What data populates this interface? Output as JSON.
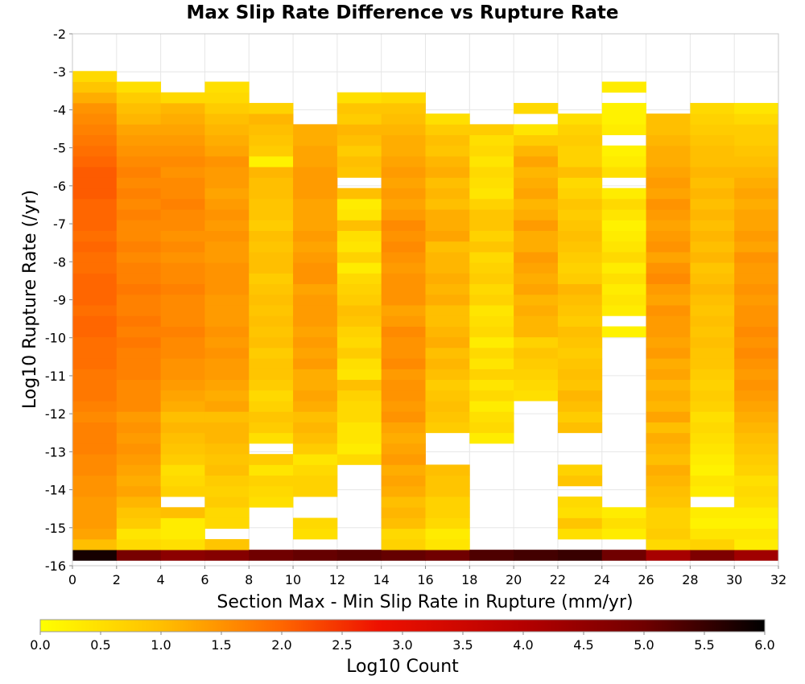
{
  "chart_data": {
    "type": "heatmap",
    "title": "Max Slip Rate Difference vs Rupture Rate",
    "xlabel": "Section Max - Min Slip Rate in Rupture (mm/yr)",
    "ylabel": "Log10 Rupture Rate (/yr)",
    "xlim": [
      0,
      32
    ],
    "ylim": [
      -16,
      -2
    ],
    "xticks": [
      "0",
      "2",
      "4",
      "6",
      "8",
      "10",
      "12",
      "14",
      "16",
      "18",
      "20",
      "22",
      "24",
      "26",
      "28",
      "30",
      "32"
    ],
    "yticks": [
      "-2",
      "-3",
      "-4",
      "-5",
      "-6",
      "-7",
      "-8",
      "-9",
      "-10",
      "-11",
      "-12",
      "-13",
      "-14",
      "-15",
      "-16"
    ],
    "grid": true,
    "x_bin_width": 2,
    "y_bin_height": 0.28,
    "x_bins": [
      0,
      2,
      4,
      6,
      8,
      10,
      12,
      14,
      16,
      18,
      20,
      22,
      24,
      26,
      28,
      30
    ],
    "y_bins_bottom_to_top": [
      -15.86,
      -15.58,
      -15.3,
      -15.02,
      -14.74,
      -14.46,
      -14.18,
      -13.9,
      -13.62,
      -13.34,
      -13.06,
      -12.78,
      -12.5,
      -12.22,
      -11.94,
      -11.66,
      -11.38,
      -11.1,
      -10.82,
      -10.54,
      -10.26,
      -9.98,
      -9.7,
      -9.42,
      -9.14,
      -8.86,
      -8.58,
      -8.3,
      -8.02,
      -7.74,
      -7.46,
      -7.18,
      -6.9,
      -6.62,
      -6.34,
      -6.06,
      -5.78,
      -5.5,
      -5.22,
      -4.94,
      -4.66,
      -4.38,
      -4.1,
      -3.82,
      -3.54,
      -3.26
    ],
    "values_log10_count": [
      [
        5.8,
        1.0,
        1.3,
        1.4,
        1.4,
        1.4,
        1.5,
        1.5,
        1.6,
        1.6,
        1.7,
        1.7,
        1.7,
        1.6,
        1.7,
        1.8,
        1.8,
        1.8,
        1.9,
        1.9,
        1.9,
        2.0,
        2.0,
        1.9,
        2.0,
        2.0,
        2.0,
        1.9,
        1.9,
        2.0,
        1.9,
        2.0,
        2.0,
        2.0,
        2.1,
        2.1,
        2.1,
        2.0,
        1.9,
        1.8,
        1.7,
        1.6,
        1.5,
        1.2,
        0.9,
        0.6
      ],
      [
        4.9,
        0.6,
        0.4,
        0.8,
        0.9,
        1.1,
        1.3,
        1.2,
        1.3,
        1.4,
        1.5,
        1.4,
        1.5,
        1.4,
        1.6,
        1.6,
        1.6,
        1.7,
        1.7,
        1.7,
        1.8,
        1.7,
        1.8,
        1.7,
        1.7,
        1.8,
        1.7,
        1.7,
        1.6,
        1.7,
        1.6,
        1.6,
        1.7,
        1.6,
        1.7,
        1.6,
        1.7,
        1.6,
        1.5,
        1.4,
        1.3,
        1.1,
        1.0,
        0.8,
        0.5,
        null
      ],
      [
        4.6,
        0.5,
        0.3,
        0.3,
        1.0,
        null,
        0.7,
        0.6,
        0.5,
        0.8,
        0.9,
        1.0,
        1.1,
        1.0,
        1.2,
        1.3,
        1.4,
        1.5,
        1.5,
        1.6,
        1.6,
        1.7,
        1.6,
        1.6,
        1.6,
        1.7,
        1.6,
        1.6,
        1.5,
        1.6,
        1.5,
        1.6,
        1.6,
        1.7,
        1.6,
        1.6,
        1.5,
        1.6,
        1.5,
        1.4,
        1.3,
        1.2,
        1.1,
        0.6,
        null,
        null
      ],
      [
        4.7,
        0.9,
        null,
        0.6,
        0.6,
        0.8,
        0.7,
        0.8,
        1.0,
        0.9,
        1.0,
        1.1,
        1.1,
        1.0,
        1.3,
        1.2,
        1.3,
        1.4,
        1.4,
        1.5,
        1.4,
        1.5,
        1.4,
        1.4,
        1.4,
        1.5,
        1.5,
        1.5,
        1.4,
        1.4,
        1.5,
        1.4,
        1.5,
        1.4,
        1.3,
        1.4,
        1.4,
        1.5,
        1.3,
        1.2,
        1.1,
        1.0,
        0.8,
        0.6,
        0.5,
        null
      ],
      [
        5.0,
        null,
        null,
        null,
        null,
        0.5,
        0.6,
        0.7,
        0.4,
        0.8,
        null,
        0.5,
        0.8,
        0.9,
        0.7,
        0.6,
        0.8,
        0.9,
        0.9,
        0.8,
        1.0,
        0.9,
        1.0,
        0.9,
        1.0,
        0.9,
        0.8,
        1.0,
        1.0,
        0.9,
        1.0,
        0.8,
        0.9,
        0.9,
        1.0,
        1.0,
        1.1,
        0.2,
        0.8,
        0.9,
        1.0,
        1.1,
        0.7,
        null,
        null,
        null
      ],
      [
        5.1,
        null,
        0.5,
        0.6,
        null,
        null,
        0.7,
        0.7,
        0.6,
        0.4,
        0.8,
        1.0,
        1.1,
        1.0,
        1.2,
        1.3,
        1.2,
        1.2,
        1.4,
        1.3,
        1.4,
        1.3,
        1.4,
        1.4,
        1.4,
        1.3,
        1.5,
        1.5,
        1.4,
        1.3,
        1.4,
        1.3,
        1.3,
        1.3,
        1.4,
        1.4,
        1.4,
        1.3,
        1.3,
        1.2,
        1.2,
        null,
        null,
        null,
        null,
        null
      ],
      [
        5.2,
        null,
        null,
        null,
        null,
        null,
        null,
        null,
        null,
        0.6,
        0.3,
        0.4,
        0.4,
        0.6,
        0.6,
        0.7,
        1.0,
        0.4,
        0.5,
        0.8,
        0.6,
        0.7,
        0.9,
        1.0,
        0.8,
        0.7,
        0.6,
        0.3,
        0.7,
        0.4,
        0.5,
        1.0,
        0.4,
        0.3,
        1.0,
        null,
        0.9,
        1.0,
        0.8,
        1.0,
        1.1,
        0.8,
        0.9,
        0.5,
        null,
        null
      ],
      [
        5.1,
        0.7,
        0.6,
        1.0,
        1.1,
        1.0,
        1.2,
        1.3,
        1.2,
        1.4,
        1.3,
        1.2,
        1.3,
        1.5,
        1.4,
        1.5,
        1.5,
        1.4,
        1.6,
        1.5,
        1.5,
        1.6,
        1.4,
        1.3,
        1.5,
        1.5,
        1.5,
        1.4,
        1.5,
        1.6,
        1.5,
        1.6,
        1.4,
        1.3,
        1.4,
        1.3,
        1.4,
        1.3,
        1.2,
        1.2,
        1.1,
        1.0,
        0.9,
        0.6,
        null,
        null
      ],
      [
        5.0,
        0.4,
        0.3,
        0.6,
        0.7,
        0.7,
        0.9,
        0.9,
        1.0,
        null,
        null,
        null,
        0.8,
        0.9,
        1.0,
        0.9,
        0.8,
        1.0,
        1.1,
        1.0,
        1.2,
        1.1,
        1.0,
        1.0,
        1.2,
        1.1,
        1.2,
        1.1,
        1.1,
        1.0,
        1.3,
        1.2,
        1.2,
        1.0,
        1.1,
        1.0,
        1.2,
        1.1,
        0.9,
        1.0,
        0.8,
        0.5,
        null,
        null,
        null,
        null
      ],
      [
        5.3,
        null,
        null,
        null,
        null,
        null,
        null,
        null,
        null,
        null,
        null,
        0.3,
        0.6,
        0.5,
        0.3,
        0.6,
        0.4,
        0.7,
        0.4,
        0.6,
        0.3,
        0.6,
        0.5,
        0.4,
        0.7,
        0.6,
        0.8,
        0.7,
        0.6,
        0.9,
        0.7,
        0.9,
        0.9,
        0.7,
        0.4,
        0.5,
        0.6,
        0.4,
        0.6,
        0.5,
        0.8,
        null,
        null,
        null,
        null,
        null
      ],
      [
        5.4,
        null,
        null,
        null,
        null,
        null,
        null,
        null,
        null,
        null,
        null,
        null,
        null,
        null,
        null,
        0.5,
        0.6,
        0.7,
        0.8,
        0.9,
        0.7,
        1.1,
        1.1,
        1.2,
        1.1,
        1.3,
        1.2,
        1.3,
        1.4,
        1.2,
        1.2,
        1.4,
        1.2,
        1.1,
        1.3,
        1.2,
        1.1,
        1.3,
        1.1,
        0.8,
        0.4,
        null,
        0.6,
        null,
        null,
        null
      ],
      [
        5.5,
        null,
        0.5,
        0.9,
        0.5,
        0.6,
        null,
        0.9,
        0.7,
        null,
        null,
        null,
        1.0,
        0.8,
        1.0,
        1.1,
        0.9,
        1.0,
        0.9,
        0.8,
        0.9,
        1.0,
        0.8,
        0.9,
        1.0,
        1.1,
        0.8,
        0.7,
        0.8,
        0.9,
        1.0,
        0.9,
        0.8,
        0.9,
        0.7,
        0.6,
        1.0,
        0.7,
        0.7,
        0.8,
        0.7,
        0.5,
        null,
        null,
        null,
        null
      ],
      [
        5.0,
        null,
        0.3,
        0.5,
        0.3,
        null,
        null,
        null,
        null,
        null,
        null,
        null,
        null,
        null,
        null,
        null,
        null,
        null,
        null,
        null,
        null,
        0.2,
        null,
        0.3,
        0.4,
        0.3,
        0.5,
        0.3,
        0.6,
        0.4,
        0.3,
        0.2,
        0.4,
        0.6,
        0.3,
        null,
        0.5,
        0.3,
        0.2,
        null,
        0.3,
        0.2,
        0.2,
        null,
        0.3,
        null
      ],
      [
        4.2,
        0.6,
        0.8,
        0.7,
        0.7,
        0.9,
        1.0,
        1.1,
        1.2,
        1.0,
        1.1,
        1.2,
        1.0,
        1.3,
        1.1,
        1.2,
        1.1,
        1.3,
        1.2,
        1.4,
        1.3,
        1.4,
        1.4,
        1.5,
        1.3,
        1.4,
        1.6,
        1.5,
        1.3,
        1.5,
        1.4,
        1.3,
        1.4,
        1.5,
        1.3,
        1.4,
        1.3,
        1.2,
        1.2,
        1.1,
        1.0,
        1.0,
        null,
        null,
        null,
        null
      ],
      [
        4.8,
        0.7,
        0.4,
        0.2,
        0.3,
        null,
        0.3,
        0.4,
        0.2,
        0.3,
        0.4,
        0.5,
        0.6,
        0.5,
        0.7,
        0.8,
        0.7,
        0.8,
        0.9,
        0.9,
        1.0,
        0.9,
        1.0,
        0.9,
        1.0,
        1.1,
        1.0,
        0.9,
        1.1,
        1.0,
        1.1,
        1.0,
        1.1,
        1.0,
        1.1,
        1.0,
        1.1,
        1.0,
        1.0,
        0.9,
        0.8,
        0.7,
        0.6,
        null,
        null,
        null
      ],
      [
        4.3,
        0.3,
        0.4,
        0.2,
        0.3,
        0.5,
        0.6,
        0.5,
        0.7,
        0.8,
        0.9,
        1.0,
        1.1,
        1.2,
        1.3,
        1.4,
        1.5,
        1.4,
        1.5,
        1.6,
        1.5,
        1.6,
        1.5,
        1.5,
        1.4,
        1.5,
        1.4,
        1.4,
        1.5,
        1.3,
        1.4,
        1.3,
        1.3,
        1.2,
        1.3,
        1.2,
        1.1,
        1.0,
        0.9,
        0.8,
        0.8,
        0.6,
        0.4,
        null,
        null,
        null
      ]
    ],
    "colorbar": {
      "label": "Log10 Count",
      "min": 0.0,
      "max": 6.0,
      "ticks": [
        "0.0",
        "0.5",
        "1.0",
        "1.5",
        "2.0",
        "2.5",
        "3.0",
        "3.5",
        "4.0",
        "4.5",
        "5.0",
        "5.5",
        "6.0"
      ],
      "stops": [
        {
          "v": 0.0,
          "color": "#ffff00"
        },
        {
          "v": 1.0,
          "color": "#ffbf00"
        },
        {
          "v": 2.0,
          "color": "#ff6600"
        },
        {
          "v": 2.8,
          "color": "#ee1100"
        },
        {
          "v": 4.0,
          "color": "#b50000"
        },
        {
          "v": 5.0,
          "color": "#700000"
        },
        {
          "v": 6.0,
          "color": "#000000"
        }
      ]
    },
    "colors": {
      "grid": "#e6e6e6",
      "frame": "#c8c8c8",
      "background": "#ffffff"
    }
  }
}
